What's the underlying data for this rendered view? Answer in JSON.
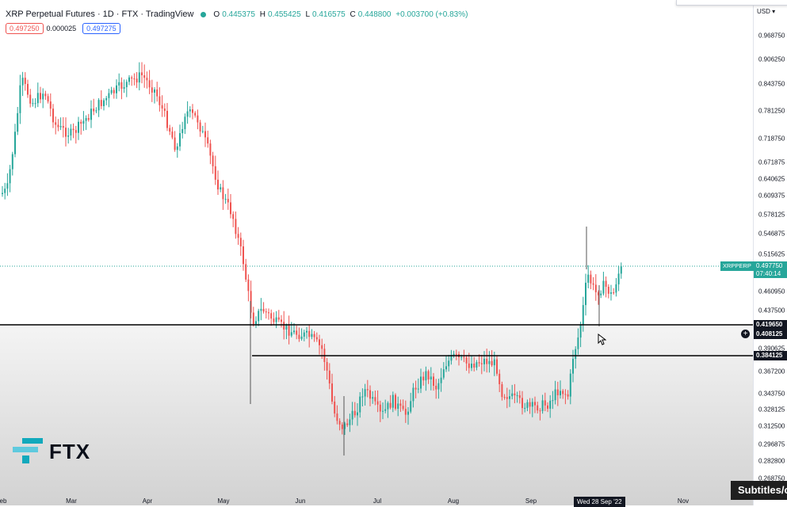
{
  "header": {
    "title": "XRP Perpetual Futures · 1D · FTX · TradingView",
    "ohlc": {
      "o_label": "O",
      "o": "0.445375",
      "h_label": "H",
      "h": "0.455425",
      "l_label": "L",
      "l": "0.416575",
      "c_label": "C",
      "c": "0.448800",
      "change": "+0.003700 (+0.83%)"
    },
    "bid": "0.497250",
    "spread": "0.000025",
    "ask": "0.497275"
  },
  "price_axis": {
    "currency": "USD",
    "ticks": [
      "0.968750",
      "0.906250",
      "0.843750",
      "0.781250",
      "0.718750",
      "0.671875",
      "0.640625",
      "0.609375",
      "0.578125",
      "0.546875",
      "0.515625",
      "0.460950",
      "0.437500",
      "0.390625",
      "0.367200",
      "0.343750",
      "0.328125",
      "0.312500",
      "0.296875",
      "0.282800",
      "0.268750"
    ],
    "level_1": "0.419650",
    "level_crosshair": "0.408125",
    "level_2": "0.384125",
    "current_symbol": "XRPPERP",
    "current_price": "0.497750",
    "countdown": "07:40:14"
  },
  "time_axis": {
    "months": [
      "eb",
      "Mar",
      "Apr",
      "May",
      "Jun",
      "Jul",
      "Aug",
      "Sep",
      "Nov"
    ],
    "crosshair_date": "Wed 28 Sep '22"
  },
  "colors": {
    "up": "#26a69a",
    "down": "#ef5350",
    "line": "#000000"
  },
  "logo": {
    "text": "FTX"
  },
  "overlay": {
    "subtitles": "Subtitles/c"
  }
}
